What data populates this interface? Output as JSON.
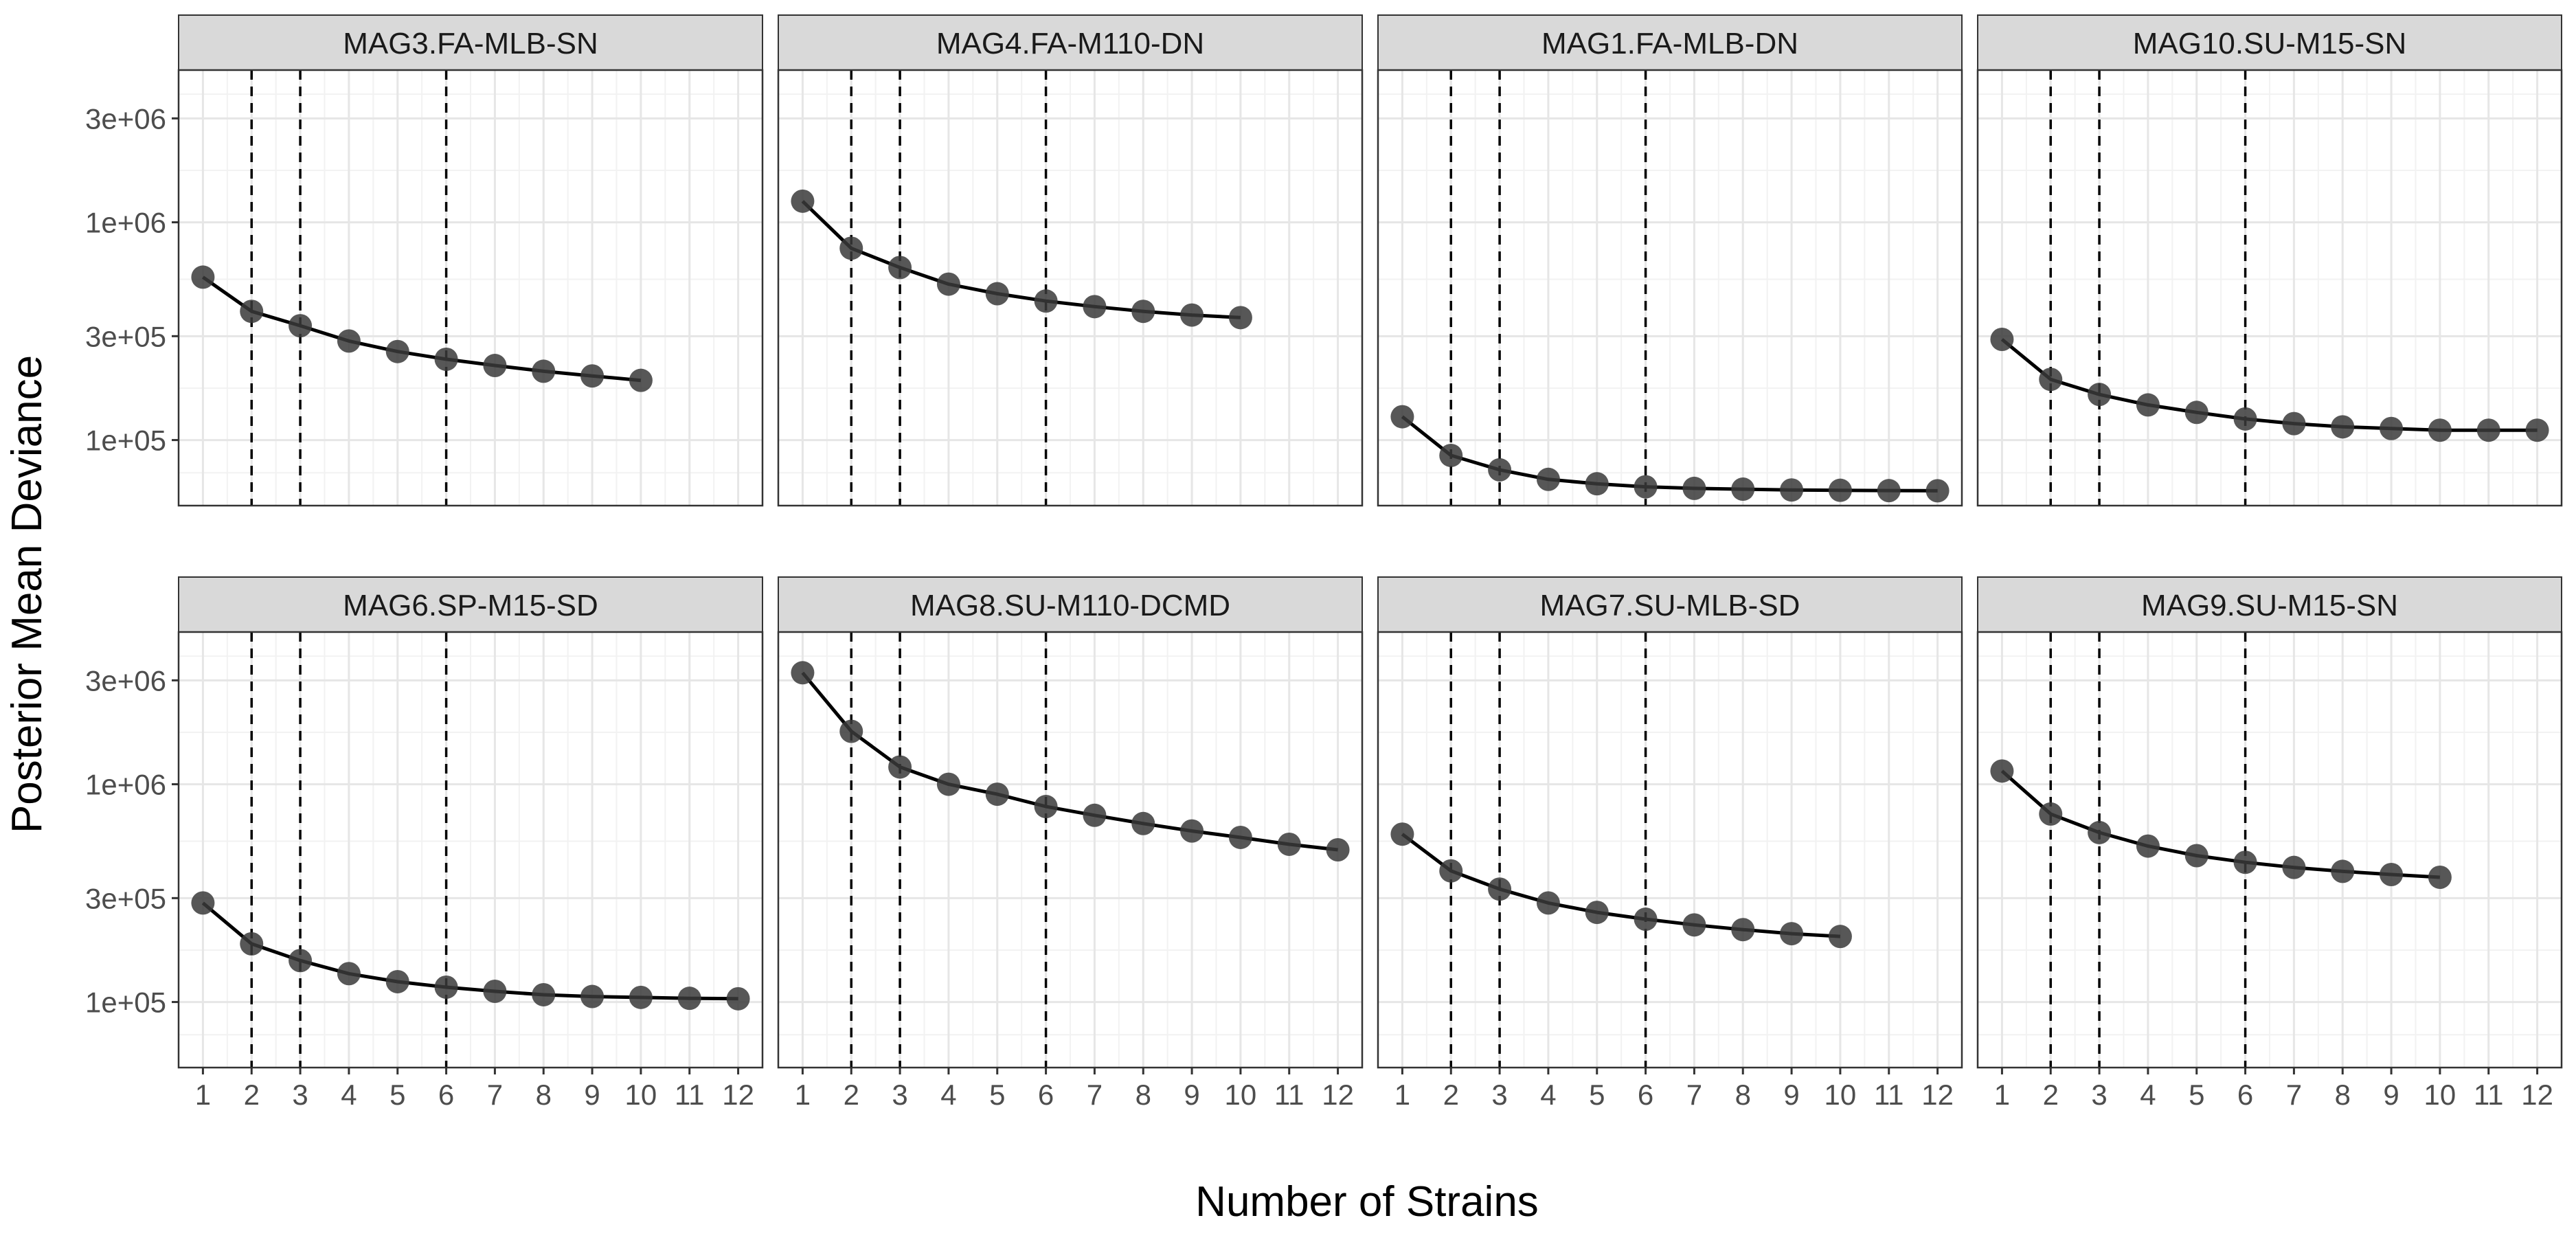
{
  "chart_data": {
    "type": "line",
    "title": "",
    "xlabel": "Number of Strains",
    "ylabel": "Posterior Mean Deviance",
    "y_scale": "log10",
    "ylim": [
      50000,
      5000000
    ],
    "xlim": [
      0.5,
      12.5
    ],
    "x_ticks": [
      1,
      2,
      3,
      4,
      5,
      6,
      7,
      8,
      9,
      10,
      11,
      12
    ],
    "y_ticks": [
      {
        "value": 100000,
        "label": "1e+05"
      },
      {
        "value": 300000,
        "label": "3e+05"
      },
      {
        "value": 1000000,
        "label": "1e+06"
      },
      {
        "value": 3000000,
        "label": "3e+06"
      }
    ],
    "reference_lines_x": [
      2,
      3,
      6
    ],
    "grid": true,
    "colors": {
      "point": "#3a3a3a",
      "line": "#000000",
      "strip": "#d9d9d9",
      "panel_border": "#333333",
      "grid_major": "#e6e6e6",
      "grid_minor": "#f2f2f2"
    },
    "panels": [
      {
        "title": "MAG3.FA-MLB-SN",
        "x": [
          1,
          2,
          3,
          4,
          5,
          6,
          7,
          8,
          9,
          10
        ],
        "y": [
          560000,
          390000,
          335000,
          285000,
          255000,
          235000,
          220000,
          207000,
          197000,
          188000
        ]
      },
      {
        "title": "MAG4.FA-M110-DN",
        "x": [
          1,
          2,
          3,
          4,
          5,
          6,
          7,
          8,
          9,
          10
        ],
        "y": [
          1250000,
          760000,
          620000,
          520000,
          470000,
          435000,
          410000,
          390000,
          375000,
          365000
        ]
      },
      {
        "title": "MAG1.FA-MLB-DN",
        "x": [
          1,
          2,
          3,
          4,
          5,
          6,
          7,
          8,
          9,
          10,
          11,
          12
        ],
        "y": [
          128000,
          85000,
          73000,
          66000,
          63000,
          61000,
          60000,
          59500,
          59000,
          58800,
          58600,
          58500
        ]
      },
      {
        "title": "MAG10.SU-M15-SN",
        "x": [
          1,
          2,
          3,
          4,
          5,
          6,
          7,
          8,
          9,
          10,
          11,
          12
        ],
        "y": [
          290000,
          190000,
          162000,
          145000,
          134000,
          125000,
          119000,
          115000,
          113000,
          111000,
          111000,
          111000
        ]
      },
      {
        "title": "MAG6.SP-M15-SD",
        "x": [
          1,
          2,
          3,
          4,
          5,
          6,
          7,
          8,
          9,
          10,
          11,
          12
        ],
        "y": [
          285000,
          185000,
          155000,
          135000,
          124000,
          117000,
          112000,
          108000,
          106000,
          105000,
          104000,
          103500
        ]
      },
      {
        "title": "MAG8.SU-M110-DCMD",
        "x": [
          1,
          2,
          3,
          4,
          5,
          6,
          7,
          8,
          9,
          10,
          11,
          12
        ],
        "y": [
          3250000,
          1750000,
          1200000,
          1000000,
          900000,
          790000,
          720000,
          660000,
          610000,
          570000,
          530000,
          500000
        ]
      },
      {
        "title": "MAG7.SU-MLB-SD",
        "x": [
          1,
          2,
          3,
          4,
          5,
          6,
          7,
          8,
          9,
          10
        ],
        "y": [
          590000,
          400000,
          330000,
          285000,
          258000,
          240000,
          226000,
          215000,
          206000,
          200000
        ]
      },
      {
        "title": "MAG9.SU-M15-SN",
        "x": [
          1,
          2,
          3,
          4,
          5,
          6,
          7,
          8,
          9,
          10
        ],
        "y": [
          1150000,
          730000,
          600000,
          520000,
          470000,
          438000,
          415000,
          398000,
          385000,
          374000
        ]
      }
    ]
  }
}
